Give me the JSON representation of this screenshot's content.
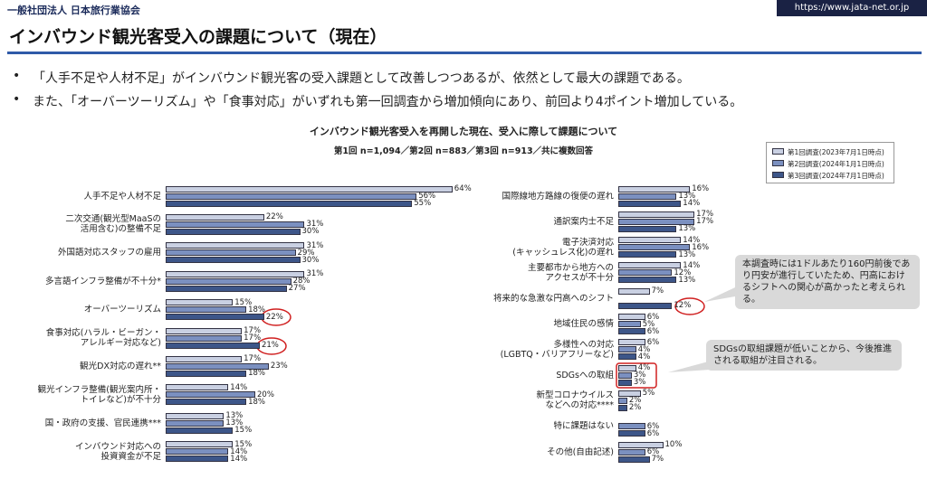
{
  "header": {
    "org": "一般社団法人 日本旅行業協会",
    "url": "https://www.jata-net.or.jp"
  },
  "title": "インバウンド観光客受入の課題について（現在）",
  "bullets": [
    "「人手不足や人材不足」がインバウンド観光客の受入課題として改善しつつあるが、依然として最大の課題である。",
    "また、「オーバーツーリズム」や「食事対応」がいずれも第一回調査から増加傾向にあり、前回より4ポイント増加している。"
  ],
  "annotations": [
    "本調査時には1ドルあたり160円前後であり円安が進行していたため、円高におけるシフトへの関心が高かったと考えられる。",
    "SDGsの取組課題が低いことから、今後推進される取組が注目される。"
  ],
  "chart_data": [
    {
      "type": "bar",
      "orientation": "horizontal",
      "title": "インバウンド観光客受入を再開した現在、受入に際して課題について",
      "subtitle": "第1回 n=1,094／第2回 n=883／第3回 n=913／共に複数回答",
      "categories": [
        "人手不足や人材不足",
        "二次交通(観光型MaaSの\n活用含む)の整備不足",
        "外国語対応スタッフの雇用",
        "多言語インフラ整備が不十分*",
        "オーバーツーリズム",
        "食事対応(ハラル・ビーガン・\nアレルギー対応など)",
        "観光DX対応の遅れ**",
        "観光インフラ整備(観光案内所・\nトイレなど)が不十分",
        "国・政府の支援、官民連携***",
        "インバウンド対応への\n投資資金が不足"
      ],
      "series": [
        {
          "color": "#c9d0e2",
          "values": [
            64,
            22,
            31,
            31,
            15,
            17,
            17,
            14,
            13,
            15
          ],
          "value_labels": [
            "64%",
            "22%",
            "31%",
            "31%",
            "15%",
            "17%",
            "17%",
            "14%",
            "13%",
            "15%"
          ]
        },
        {
          "color": "#7b90c0",
          "values": [
            56,
            31,
            29,
            28,
            18,
            17,
            23,
            20,
            13,
            14
          ],
          "value_labels": [
            "56%",
            "31%",
            "29%",
            "28%",
            "18%",
            "17%",
            "23%",
            "20%",
            "13%",
            "14%"
          ]
        },
        {
          "color": "#3d5689",
          "values": [
            55,
            30,
            30,
            27,
            22,
            21,
            18,
            18,
            15,
            14
          ],
          "value_labels": [
            "55%",
            "30%",
            "30%",
            "27%",
            "22%",
            "21%",
            "18%",
            "18%",
            "15%",
            "14%"
          ]
        }
      ]
    },
    {
      "type": "bar",
      "orientation": "horizontal",
      "legend": "top-right",
      "categories": [
        "国際線地方路線の復便の遅れ",
        "通訳案内士不足",
        "電子決済対応\n(キャッシュレス化)の遅れ",
        "主要都市から地方への\nアクセスが不十分",
        "将来的な急激な円高へのシフト",
        "地域住民の感情",
        "多様性への対応\n(LGBTQ・バリアフリーなど)",
        "SDGsへの取組",
        "新型コロナウイルス\nなどへの対応****",
        "特に課題はない",
        "その他(自由記述)"
      ],
      "series": [
        {
          "name": "第1回調査(2023年7月1日時点)",
          "color": "#c9d0e2",
          "values": [
            16,
            17,
            14,
            14,
            7,
            6,
            6,
            4,
            5,
            null,
            10
          ],
          "value_labels": [
            "16%",
            "17%",
            "14%",
            "14%",
            "7%",
            "6%",
            "6%",
            "4%",
            "5%",
            null,
            "10%"
          ]
        },
        {
          "name": "第2回調査(2024年1月1日時点)",
          "color": "#7b90c0",
          "values": [
            13,
            17,
            16,
            12,
            null,
            5,
            4,
            3,
            2,
            6,
            6
          ],
          "value_labels": [
            "13%",
            "17%",
            "16%",
            "12%",
            null,
            "5%",
            "4%",
            "3%",
            "2%",
            "6%",
            "6%"
          ]
        },
        {
          "name": "第3回調査(2024年7月1日時点)",
          "color": "#3d5689",
          "values": [
            14,
            13,
            13,
            13,
            12,
            6,
            4,
            3,
            2,
            6,
            7
          ],
          "value_labels": [
            "14%",
            "13%",
            "13%",
            "13%",
            "12%",
            "6%",
            "4%",
            "3%",
            "2%",
            "6%",
            "7%"
          ]
        }
      ]
    }
  ]
}
